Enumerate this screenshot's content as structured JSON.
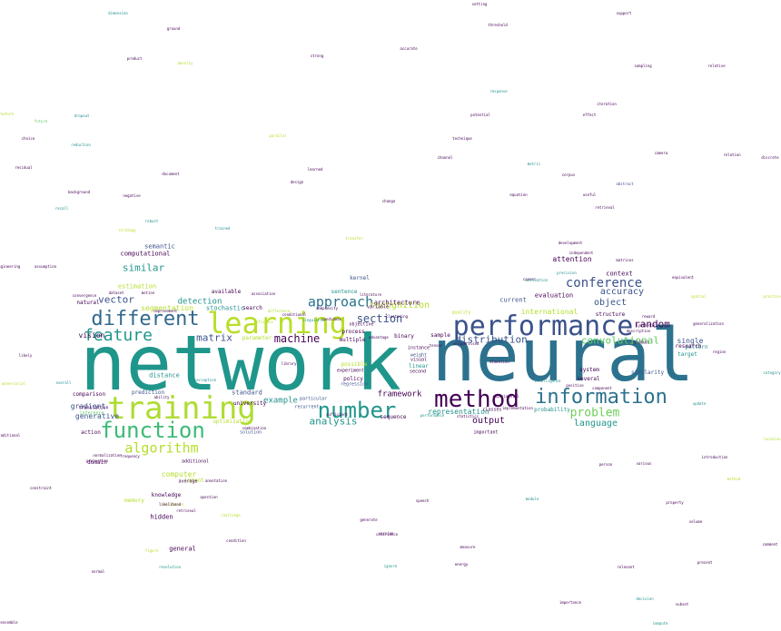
{
  "palette": {
    "purple": "#440154",
    "indigo": "#3b528b",
    "teal": "#21918c",
    "green": "#5ec962",
    "yellow": "#b5de2b",
    "background": "#ffffff"
  },
  "words": [
    {
      "text": "network",
      "color": "#1f968b"
    },
    {
      "text": "neural",
      "color": "#2c728e"
    },
    {
      "text": "training",
      "color": "#addc30"
    },
    {
      "text": "learning",
      "color": "#b8de29"
    },
    {
      "text": "performance",
      "color": "#3b528b"
    },
    {
      "text": "method",
      "color": "#440154"
    },
    {
      "text": "information",
      "color": "#2c728e"
    },
    {
      "text": "number",
      "color": "#1f968b"
    },
    {
      "text": "different",
      "color": "#31688e"
    },
    {
      "text": "function",
      "color": "#3cbb75"
    },
    {
      "text": "feature",
      "color": "#1f968b"
    },
    {
      "text": "algorithm",
      "color": "#b5de2b"
    },
    {
      "text": "approach",
      "color": "#2c728e"
    },
    {
      "text": "conference",
      "color": "#3b528b"
    },
    {
      "text": "section",
      "color": "#3b528b"
    },
    {
      "text": "problem",
      "color": "#6ece58"
    },
    {
      "text": "machine",
      "color": "#440154"
    },
    {
      "text": "random",
      "color": "#440154"
    },
    {
      "text": "convolutional",
      "color": "#5ec962"
    },
    {
      "text": "distribution",
      "color": "#3b528b"
    },
    {
      "text": "recognition",
      "color": "#b5de2b"
    },
    {
      "text": "language",
      "color": "#1f968b"
    },
    {
      "text": "object",
      "color": "#3b528b"
    },
    {
      "text": "accuracy",
      "color": "#3b528b"
    },
    {
      "text": "vector",
      "color": "#3b528b"
    },
    {
      "text": "matrix",
      "color": "#3b528b"
    },
    {
      "text": "analysis",
      "color": "#21918c"
    },
    {
      "text": "similar",
      "color": "#1f968b"
    },
    {
      "text": "detection",
      "color": "#21918c"
    },
    {
      "text": "output",
      "color": "#440154"
    },
    {
      "text": "example",
      "color": "#21918c"
    },
    {
      "text": "international",
      "color": "#b5de2b"
    },
    {
      "text": "vision",
      "color": "#440154"
    },
    {
      "text": "representation",
      "color": "#21918c"
    },
    {
      "text": "gradient",
      "color": "#3b528b"
    },
    {
      "text": "computer",
      "color": "#b5de2b"
    },
    {
      "text": "single",
      "color": "#3b528b"
    },
    {
      "text": "generative",
      "color": "#3b528b"
    },
    {
      "text": "attention",
      "color": "#440154"
    },
    {
      "text": "segmentation",
      "color": "#b5de2b"
    },
    {
      "text": "context",
      "color": "#440154"
    },
    {
      "text": "framework",
      "color": "#440154"
    },
    {
      "text": "architecture",
      "color": "#440154"
    },
    {
      "text": "computational",
      "color": "#440154"
    },
    {
      "text": "distance",
      "color": "#21918c"
    },
    {
      "text": "estimation",
      "color": "#b5de2b"
    },
    {
      "text": "standard",
      "color": "#3b528b"
    },
    {
      "text": "stochastic",
      "color": "#21918c"
    },
    {
      "text": "semantic",
      "color": "#3b528b"
    },
    {
      "text": "structure",
      "color": "#440154"
    },
    {
      "text": "current",
      "color": "#3b528b"
    },
    {
      "text": "evaluation",
      "color": "#440154"
    },
    {
      "text": "sentence",
      "color": "#21918c"
    },
    {
      "text": "kernel",
      "color": "#3b528b"
    },
    {
      "text": "possible",
      "color": "#b5de2b"
    },
    {
      "text": "several",
      "color": "#440154"
    },
    {
      "text": "system",
      "color": "#440154"
    },
    {
      "text": "target",
      "color": "#21918c"
    },
    {
      "text": "pattern",
      "color": "#21918c"
    },
    {
      "text": "research",
      "color": "#440154"
    },
    {
      "text": "similarity",
      "color": "#3b528b"
    },
    {
      "text": "available",
      "color": "#440154"
    },
    {
      "text": "search",
      "color": "#440154"
    },
    {
      "text": "general",
      "color": "#440154"
    },
    {
      "text": "hidden",
      "color": "#440154"
    },
    {
      "text": "memory",
      "color": "#b5de2b"
    },
    {
      "text": "knowledge",
      "color": "#440154"
    },
    {
      "text": "latent",
      "color": "#b5de2b"
    },
    {
      "text": "action",
      "color": "#440154"
    },
    {
      "text": "natural",
      "color": "#440154"
    },
    {
      "text": "domain",
      "color": "#440154"
    },
    {
      "text": "sample",
      "color": "#440154"
    },
    {
      "text": "binary",
      "color": "#440154"
    },
    {
      "text": "process",
      "color": "#440154"
    },
    {
      "text": "multiple",
      "color": "#440154"
    },
    {
      "text": "policy",
      "color": "#440154"
    },
    {
      "text": "weight",
      "color": "#3b528b"
    },
    {
      "text": "second",
      "color": "#440154"
    },
    {
      "text": "visual",
      "color": "#440154"
    },
    {
      "text": "linear",
      "color": "#21918c"
    },
    {
      "text": "sequence",
      "color": "#440154"
    },
    {
      "text": "regression",
      "color": "#3b528b"
    },
    {
      "text": "probability",
      "color": "#21918c"
    },
    {
      "text": "university",
      "color": "#440154"
    },
    {
      "text": "optimization",
      "color": "#b5de2b"
    },
    {
      "text": "prediction",
      "color": "#3b528b"
    },
    {
      "text": "comparison",
      "color": "#440154"
    },
    {
      "text": "average",
      "color": "#440154"
    },
    {
      "text": "additional",
      "color": "#440154"
    },
    {
      "text": "parameter",
      "color": "#b5de2b"
    },
    {
      "text": "objective",
      "color": "#440154"
    },
    {
      "text": "experiment",
      "color": "#440154"
    },
    {
      "text": "inference",
      "color": "#5ec962"
    },
    {
      "text": "translation",
      "color": "#440154"
    },
    {
      "text": "particular",
      "color": "#3b528b"
    },
    {
      "text": "recurrent",
      "color": "#3b528b"
    },
    {
      "text": "important",
      "color": "#440154"
    },
    {
      "text": "classes",
      "color": "#440154"
    },
    {
      "text": "global",
      "color": "#440154"
    },
    {
      "text": "instance",
      "color": "#440154"
    },
    {
      "text": "quality",
      "color": "#b5de2b"
    },
    {
      "text": "solution",
      "color": "#3b528b"
    },
    {
      "text": "variable",
      "color": "#440154"
    },
    {
      "text": "negative",
      "color": "#440154"
    },
    {
      "text": "question",
      "color": "#440154"
    },
    {
      "text": "validation",
      "color": "#b5de2b"
    },
    {
      "text": "retrieval",
      "color": "#440154"
    },
    {
      "text": "likelihood",
      "color": "#440154"
    },
    {
      "text": "various",
      "color": "#440154"
    },
    {
      "text": "introduction",
      "color": "#440154"
    },
    {
      "text": "component",
      "color": "#440154"
    },
    {
      "text": "dimension",
      "color": "#21918c"
    },
    {
      "text": "ground",
      "color": "#440154"
    },
    {
      "text": "setting",
      "color": "#440154"
    },
    {
      "text": "support",
      "color": "#440154"
    },
    {
      "text": "threshold",
      "color": "#440154"
    },
    {
      "text": "accurate",
      "color": "#440154"
    },
    {
      "text": "product",
      "color": "#440154"
    },
    {
      "text": "response",
      "color": "#21918c"
    },
    {
      "text": "sampling",
      "color": "#440154"
    },
    {
      "text": "density",
      "color": "#b5de2b"
    },
    {
      "text": "strong",
      "color": "#440154"
    },
    {
      "text": "relative",
      "color": "#440154"
    },
    {
      "text": "iteration",
      "color": "#440154"
    },
    {
      "text": "effect",
      "color": "#440154"
    },
    {
      "text": "feature",
      "color": "#b5de2b"
    },
    {
      "text": "future",
      "color": "#5ec962"
    },
    {
      "text": "dropout",
      "color": "#21918c"
    },
    {
      "text": "potential",
      "color": "#440154"
    },
    {
      "text": "library",
      "color": "#440154"
    },
    {
      "text": "technique",
      "color": "#440154"
    },
    {
      "text": "parallel",
      "color": "#b5de2b"
    },
    {
      "text": "reduction",
      "color": "#21918c"
    },
    {
      "text": "channel",
      "color": "#440154"
    },
    {
      "text": "choice",
      "color": "#440154"
    },
    {
      "text": "residual",
      "color": "#440154"
    },
    {
      "text": "learned",
      "color": "#440154"
    },
    {
      "text": "metric",
      "color": "#21918c"
    },
    {
      "text": "corpus",
      "color": "#440154"
    },
    {
      "text": "camera",
      "color": "#440154"
    },
    {
      "text": "relation",
      "color": "#440154"
    },
    {
      "text": "discrete",
      "color": "#440154"
    },
    {
      "text": "document",
      "color": "#440154"
    },
    {
      "text": "design",
      "color": "#440154"
    },
    {
      "text": "abstract",
      "color": "#3b528b"
    },
    {
      "text": "background",
      "color": "#440154"
    },
    {
      "text": "equation",
      "color": "#440154"
    },
    {
      "text": "useful",
      "color": "#440154"
    },
    {
      "text": "recall",
      "color": "#21918c"
    },
    {
      "text": "change",
      "color": "#440154"
    },
    {
      "text": "retrieval",
      "color": "#440154"
    },
    {
      "text": "robust",
      "color": "#21918c"
    },
    {
      "text": "strategy",
      "color": "#b5de2b"
    },
    {
      "text": "trained",
      "color": "#21918c"
    },
    {
      "text": "transfer",
      "color": "#b5de2b"
    },
    {
      "text": "development",
      "color": "#440154"
    },
    {
      "text": "independent",
      "color": "#440154"
    },
    {
      "text": "matrices",
      "color": "#440154"
    },
    {
      "text": "cancer",
      "color": "#440154"
    },
    {
      "text": "precision",
      "color": "#21918c"
    },
    {
      "text": "reward",
      "color": "#440154"
    },
    {
      "text": "equivalent",
      "color": "#440154"
    },
    {
      "text": "engineering",
      "color": "#440154"
    },
    {
      "text": "assumption",
      "color": "#440154"
    },
    {
      "text": "activation",
      "color": "#21918c"
    },
    {
      "text": "spatial",
      "color": "#b5de2b"
    },
    {
      "text": "practice",
      "color": "#b5de2b"
    },
    {
      "text": "likely",
      "color": "#440154"
    },
    {
      "text": "region",
      "color": "#440154"
    },
    {
      "text": "category",
      "color": "#21918c"
    },
    {
      "text": "adversarial",
      "color": "#b5de2b"
    },
    {
      "text": "overall",
      "color": "#21918c"
    },
    {
      "text": "update",
      "color": "#21918c"
    },
    {
      "text": "traditional",
      "color": "#440154"
    },
    {
      "text": "location",
      "color": "#b5de2b"
    },
    {
      "text": "person",
      "color": "#440154"
    },
    {
      "text": "frequency",
      "color": "#440154"
    },
    {
      "text": "annotation",
      "color": "#440154"
    },
    {
      "text": "speech",
      "color": "#440154"
    },
    {
      "text": "constraint",
      "color": "#440154"
    },
    {
      "text": "generate",
      "color": "#440154"
    },
    {
      "text": "version",
      "color": "#440154"
    },
    {
      "text": "property",
      "color": "#440154"
    },
    {
      "text": "normal",
      "color": "#440154"
    },
    {
      "text": "figure",
      "color": "#b5de2b"
    },
    {
      "text": "resolution",
      "color": "#21918c"
    },
    {
      "text": "energy",
      "color": "#440154"
    },
    {
      "text": "relevant",
      "color": "#440154"
    },
    {
      "text": "importance",
      "color": "#440154"
    },
    {
      "text": "decision",
      "color": "#21918c"
    },
    {
      "text": "volume",
      "color": "#440154"
    },
    {
      "text": "ensemble",
      "color": "#440154"
    },
    {
      "text": "compute",
      "color": "#21918c"
    },
    {
      "text": "measure",
      "color": "#440154"
    },
    {
      "text": "motion",
      "color": "#440154"
    },
    {
      "text": "dataset",
      "color": "#440154"
    },
    {
      "text": "convergence",
      "color": "#440154"
    },
    {
      "text": "literature",
      "color": "#440154"
    },
    {
      "text": "association",
      "color": "#440154"
    },
    {
      "text": "difference",
      "color": "#b5de2b"
    },
    {
      "text": "complexity",
      "color": "#440154"
    },
    {
      "text": "improvement",
      "color": "#440154"
    },
    {
      "text": "description",
      "color": "#440154"
    },
    {
      "text": "generalization",
      "color": "#440154"
    },
    {
      "text": "positive",
      "color": "#440154"
    },
    {
      "text": "synthetic",
      "color": "#440154"
    },
    {
      "text": "intelligence",
      "color": "#21918c"
    },
    {
      "text": "experimental",
      "color": "#440154"
    },
    {
      "text": "implementation",
      "color": "#440154"
    },
    {
      "text": "performance",
      "color": "#21918c"
    },
    {
      "text": "unsupervised",
      "color": "#440154"
    },
    {
      "text": "clustering",
      "color": "#440154"
    },
    {
      "text": "statistics",
      "color": "#440154"
    },
    {
      "text": "normalization",
      "color": "#440154"
    },
    {
      "text": "projection",
      "color": "#440154"
    },
    {
      "text": "advantage",
      "color": "#440154"
    },
    {
      "text": "influence",
      "color": "#b5de2b"
    },
    {
      "text": "sufficient",
      "color": "#440154"
    },
    {
      "text": "linguistic",
      "color": "#21918c"
    },
    {
      "text": "conditional",
      "color": "#440154"
    },
    {
      "text": "candidate",
      "color": "#440154"
    },
    {
      "text": "perception",
      "color": "#21918c"
    },
    {
      "text": "combination",
      "color": "#440154"
    },
    {
      "text": "ability",
      "color": "#440154"
    },
    {
      "text": "challenge",
      "color": "#b5de2b"
    },
    {
      "text": "condition",
      "color": "#440154"
    },
    {
      "text": "covariance",
      "color": "#440154"
    },
    {
      "text": "ignore",
      "color": "#21918c"
    },
    {
      "text": "dimension",
      "color": "#440154"
    },
    {
      "text": "tensor",
      "color": "#440154"
    },
    {
      "text": "method",
      "color": "#b5de2b"
    },
    {
      "text": "module",
      "color": "#21918c"
    },
    {
      "text": "comment",
      "color": "#440154"
    },
    {
      "text": "present",
      "color": "#440154"
    },
    {
      "text": "subset",
      "color": "#440154"
    }
  ]
}
